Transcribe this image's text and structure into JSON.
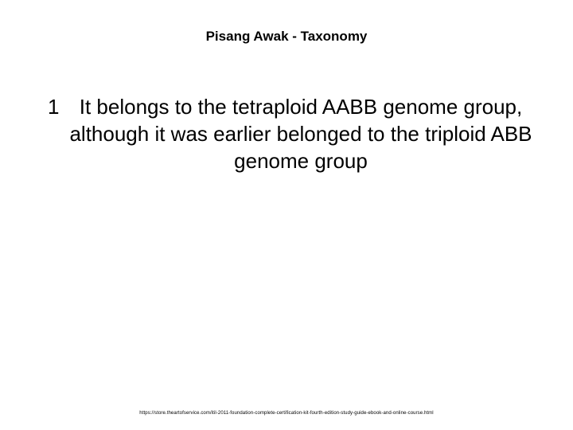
{
  "title": "Pisang Awak - Taxonomy",
  "bullet_number": "1",
  "body_text": "It belongs to the tetraploid AABB genome group, although it was earlier belonged to the triploid ABB genome group",
  "footer_url": "https://store.theartofservice.com/itil-2011-foundation-complete-certification-kit-fourth-edition-study-guide-ebook-and-online-course.html",
  "colors": {
    "background": "#ffffff",
    "text": "#000000"
  },
  "typography": {
    "title_fontsize": 17,
    "body_fontsize": 26,
    "footer_fontsize": 6,
    "font_family": "Arial"
  }
}
